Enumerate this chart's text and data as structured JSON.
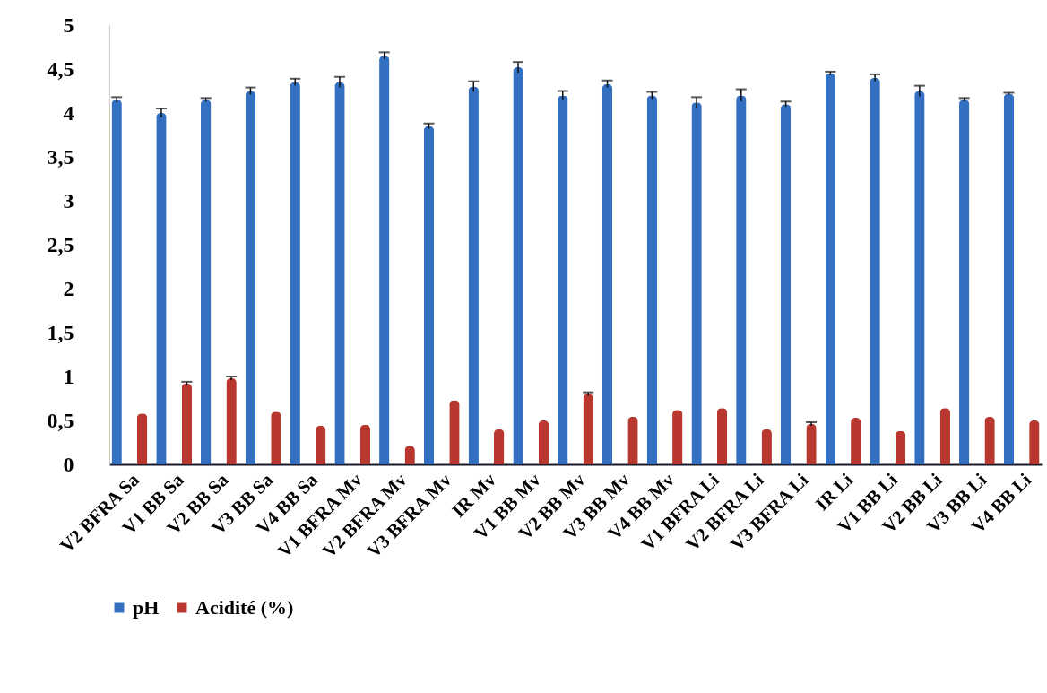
{
  "chart_data": {
    "type": "bar",
    "categories": [
      "V2 BFRA Sa",
      "V1 BB Sa",
      "V2 BB Sa",
      "V3 BB Sa",
      "V4 BB Sa",
      "V1 BFRA Mv",
      "V2 BFRA Mv",
      "V3 BFRA Mv",
      "IR Mv",
      "V1 BB Mv",
      "V2 BB Mv",
      "V3 BB Mv",
      "V4 BB Mv",
      "V1 BFRA Li",
      "V2 BFRA Li",
      "V3 BFRA Li",
      "IR Li",
      "V1 BB Li",
      "V2 BB Li",
      "V3 BB Li",
      "V4 BB Li"
    ],
    "series": [
      {
        "name": "pH",
        "color": "#3470c2",
        "values": [
          4.15,
          4.0,
          4.15,
          4.25,
          4.35,
          4.35,
          4.65,
          3.85,
          4.3,
          4.52,
          4.2,
          4.33,
          4.2,
          4.12,
          4.2,
          4.1,
          4.45,
          4.4,
          4.25,
          4.15,
          4.22
        ],
        "errors": [
          0.03,
          0.05,
          0.02,
          0.04,
          0.04,
          0.06,
          0.04,
          0.03,
          0.06,
          0.06,
          0.05,
          0.04,
          0.04,
          0.06,
          0.07,
          0.03,
          0.02,
          0.04,
          0.06,
          0.02,
          0.01
        ]
      },
      {
        "name": "Acidité (%)",
        "color": "#b8382f",
        "values": [
          0.58,
          0.92,
          0.98,
          0.6,
          0.44,
          0.45,
          0.21,
          0.73,
          0.4,
          0.5,
          0.8,
          0.54,
          0.62,
          0.64,
          0.4,
          0.46,
          0.53,
          0.38,
          0.64,
          0.54,
          0.5
        ],
        "errors": [
          null,
          0.02,
          0.02,
          null,
          null,
          null,
          null,
          null,
          null,
          null,
          0.02,
          null,
          null,
          null,
          null,
          0.02,
          null,
          null,
          null,
          null,
          null
        ]
      }
    ],
    "ylim": [
      0,
      5
    ],
    "yticks": [
      0,
      {
        "value": 0.5,
        "label": "0,5"
      },
      1,
      {
        "value": 1.5,
        "label": "1,5"
      },
      2,
      {
        "value": 2.5,
        "label": "2,5"
      },
      3,
      {
        "value": 3.5,
        "label": "3,5"
      },
      4,
      {
        "value": 4.5,
        "label": "4,5"
      },
      5
    ],
    "grid": false,
    "legend": "bottom"
  }
}
